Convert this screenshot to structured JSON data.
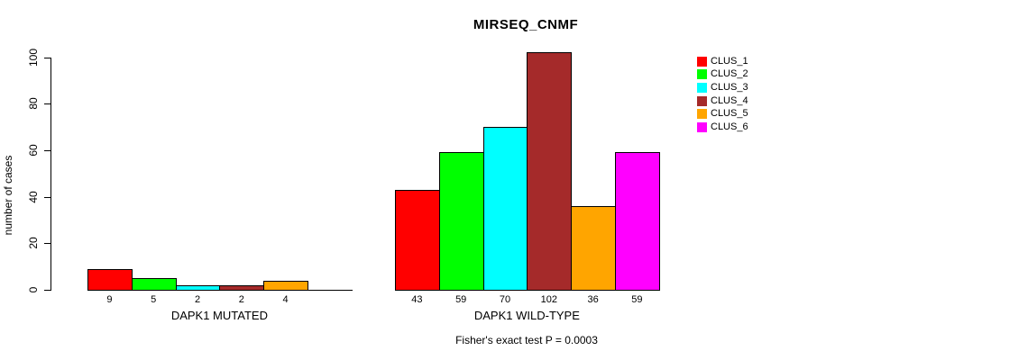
{
  "chart_data": {
    "type": "bar",
    "title": "MIRSEQ_CNMF",
    "ylabel": "number of cases",
    "footer": "Fisher's exact test P = 0.0003",
    "ylim": [
      0,
      100
    ],
    "yticks": [
      0,
      20,
      40,
      60,
      80,
      100
    ],
    "grid": false,
    "legend_position": "right",
    "legend": [
      "CLUS_1",
      "CLUS_2",
      "CLUS_3",
      "CLUS_4",
      "CLUS_5",
      "CLUS_6"
    ],
    "colors": [
      "#ff0000",
      "#00ff00",
      "#00ffff",
      "#a52a2a",
      "#ffa500",
      "#ff00ff"
    ],
    "bar_border_color": "#000000",
    "groups": [
      {
        "label": "DAPK1 MUTATED",
        "values": [
          9,
          5,
          2,
          2,
          4,
          0
        ],
        "bar_labels": [
          "9",
          "5",
          "2",
          "2",
          "4",
          ""
        ]
      },
      {
        "label": "DAPK1 WILD-TYPE",
        "values": [
          43,
          59,
          70,
          102,
          36,
          59
        ],
        "bar_labels": [
          "43",
          "59",
          "70",
          "102",
          "36",
          "59"
        ]
      }
    ]
  }
}
